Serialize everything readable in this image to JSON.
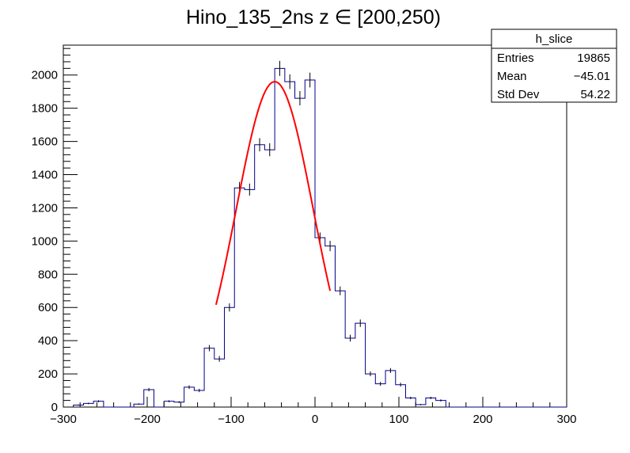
{
  "chart_data": {
    "type": "histogram",
    "title": "Hino_135_2ns z  ∈ [200,250)",
    "xlabel": "",
    "ylabel": "",
    "xlim": [
      -300,
      300
    ],
    "ylim": [
      0,
      2180
    ],
    "x_ticks": [
      -300,
      -200,
      -100,
      0,
      100,
      200,
      300
    ],
    "x_tick_labels": [
      "−300",
      "−200",
      "−100",
      "0",
      "100",
      "200",
      "300"
    ],
    "y_ticks": [
      0,
      200,
      400,
      600,
      800,
      1000,
      1200,
      1400,
      1600,
      1800,
      2000
    ],
    "y_tick_labels": [
      "0",
      "200",
      "400",
      "600",
      "800",
      "1000",
      "1200",
      "1400",
      "1600",
      "1800",
      "2000"
    ],
    "grid": false,
    "histogram": {
      "color": "#00008b",
      "bin_width": 12,
      "bin_edges_start": -300,
      "values": [
        0,
        12,
        22,
        35,
        0,
        0,
        0,
        18,
        105,
        0,
        35,
        30,
        120,
        100,
        355,
        290,
        600,
        1320,
        1310,
        1580,
        1550,
        2040,
        1960,
        1860,
        1970,
        1020,
        970,
        700,
        415,
        505,
        200,
        140,
        220,
        135,
        55,
        15,
        55,
        40,
        0,
        0,
        0,
        0,
        0,
        0,
        0,
        0,
        0,
        0,
        0,
        0
      ]
    },
    "fit": {
      "type": "gaussian",
      "color": "#ff0000",
      "amplitude": 1960,
      "mean": -48,
      "sigma": 46,
      "x_range": [
        -118,
        18
      ]
    },
    "stats_box": {
      "name": "h_slice",
      "rows": [
        {
          "label": "Entries",
          "value": "19865"
        },
        {
          "label": "Mean",
          "value": "−45.01"
        },
        {
          "label": "Std Dev",
          "value": "54.22"
        }
      ]
    }
  }
}
